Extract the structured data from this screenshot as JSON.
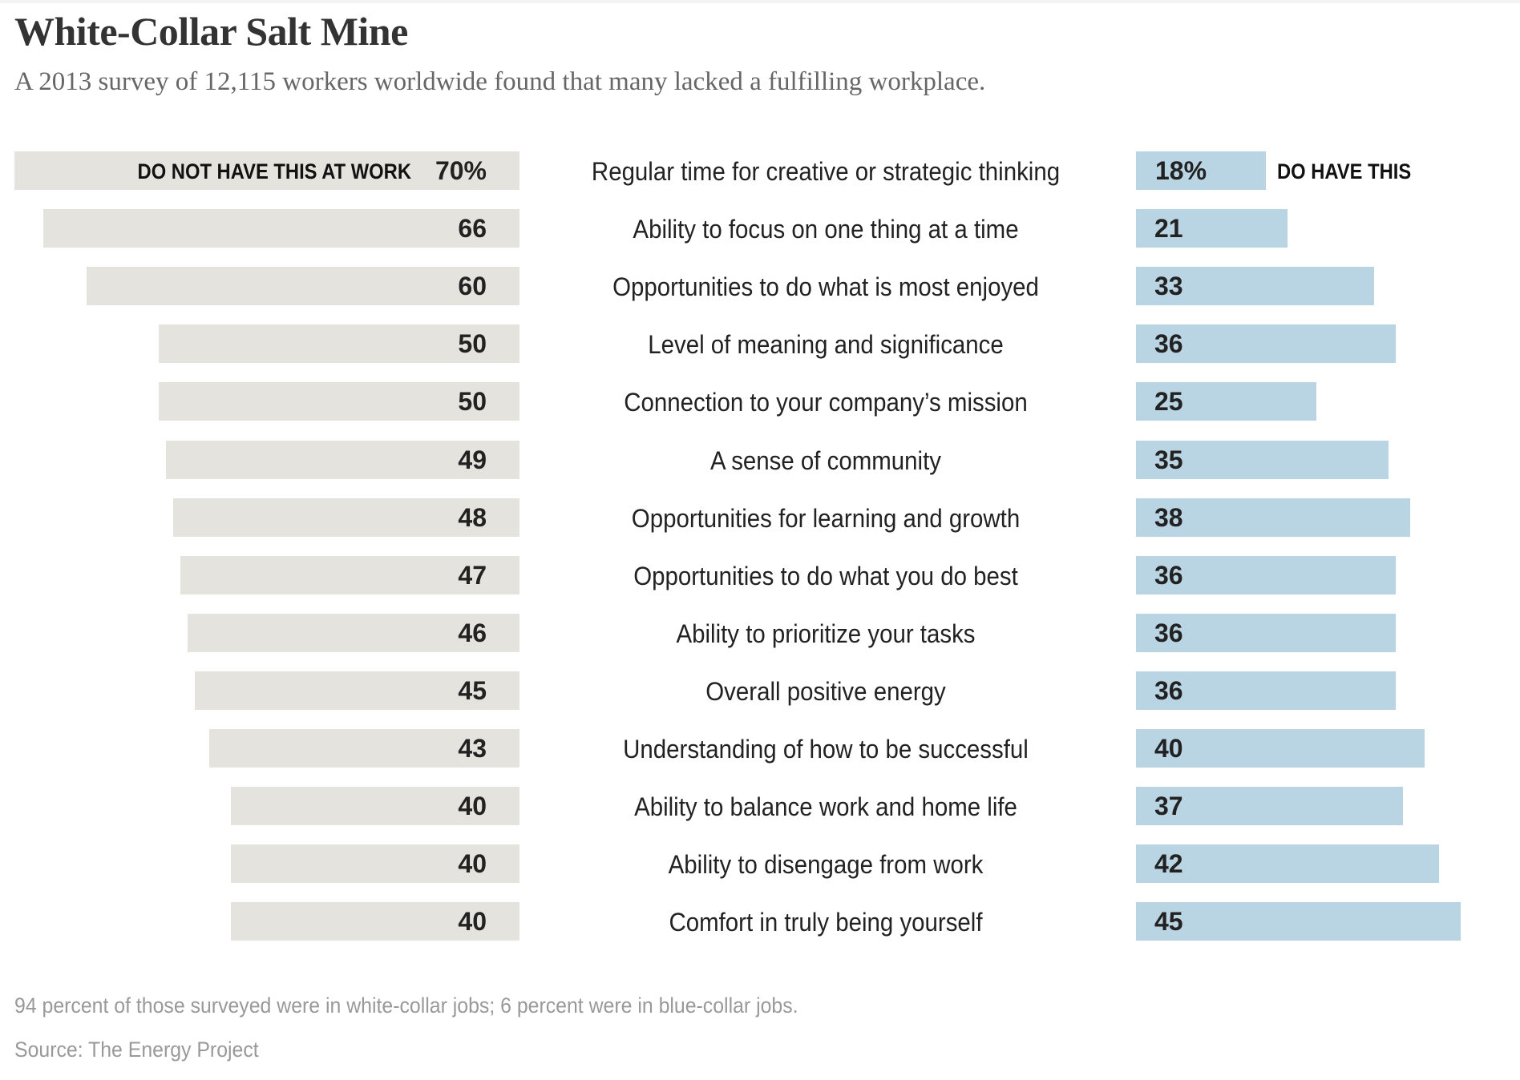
{
  "header": {
    "title": "White-Collar Salt Mine",
    "subtitle": "A 2013 survey of 12,115 workers worldwide found that many lacked a fulfilling workplace."
  },
  "colors": {
    "do_not_have_bar": "#e4e3dd",
    "do_have_bar": "#b9d4e2",
    "text_dark": "#222222",
    "title": "#333333",
    "subtitle": "#666666",
    "footnote": "#999999"
  },
  "chart_data": {
    "type": "bar",
    "orientation": "horizontal-diverging",
    "title": "White-Collar Salt Mine",
    "subtitle": "A 2013 survey of 12,115 workers worldwide found that many lacked a fulfilling workplace.",
    "unit": "%",
    "categories": [
      "Regular time for creative or strategic thinking",
      "Ability to focus on one thing at a time",
      "Opportunities to do what is most enjoyed",
      "Level of meaning and significance",
      "Connection to your company’s mission",
      "A sense of community",
      "Opportunities for learning and growth",
      "Opportunities to do what you do best",
      "Ability to prioritize your tasks",
      "Overall positive energy",
      "Understanding of how to be successful",
      "Ability to balance work and home life",
      "Ability to disengage from work",
      "Comfort in truly being yourself"
    ],
    "series": [
      {
        "name": "DO NOT HAVE THIS AT WORK",
        "side": "left",
        "values": [
          70,
          66,
          60,
          50,
          50,
          49,
          48,
          47,
          46,
          45,
          43,
          40,
          40,
          40
        ],
        "labels": [
          "70%",
          "66",
          "60",
          "50",
          "50",
          "49",
          "48",
          "47",
          "46",
          "45",
          "43",
          "40",
          "40",
          "40"
        ]
      },
      {
        "name": "DO HAVE THIS",
        "side": "right",
        "values": [
          18,
          21,
          33,
          36,
          25,
          35,
          38,
          36,
          36,
          36,
          40,
          37,
          42,
          45
        ],
        "labels": [
          "18%",
          "21",
          "33",
          "36",
          "25",
          "35",
          "38",
          "36",
          "36",
          "36",
          "40",
          "37",
          "42",
          "45"
        ]
      }
    ],
    "xlabel": "",
    "ylabel": "",
    "xlim": [
      0,
      100
    ],
    "grid": false,
    "legend": "inline-first-row"
  },
  "footer": {
    "note": "94 percent of those surveyed were in white-collar jobs; 6 percent were in blue-collar jobs.",
    "source": "Source: The Energy Project"
  }
}
